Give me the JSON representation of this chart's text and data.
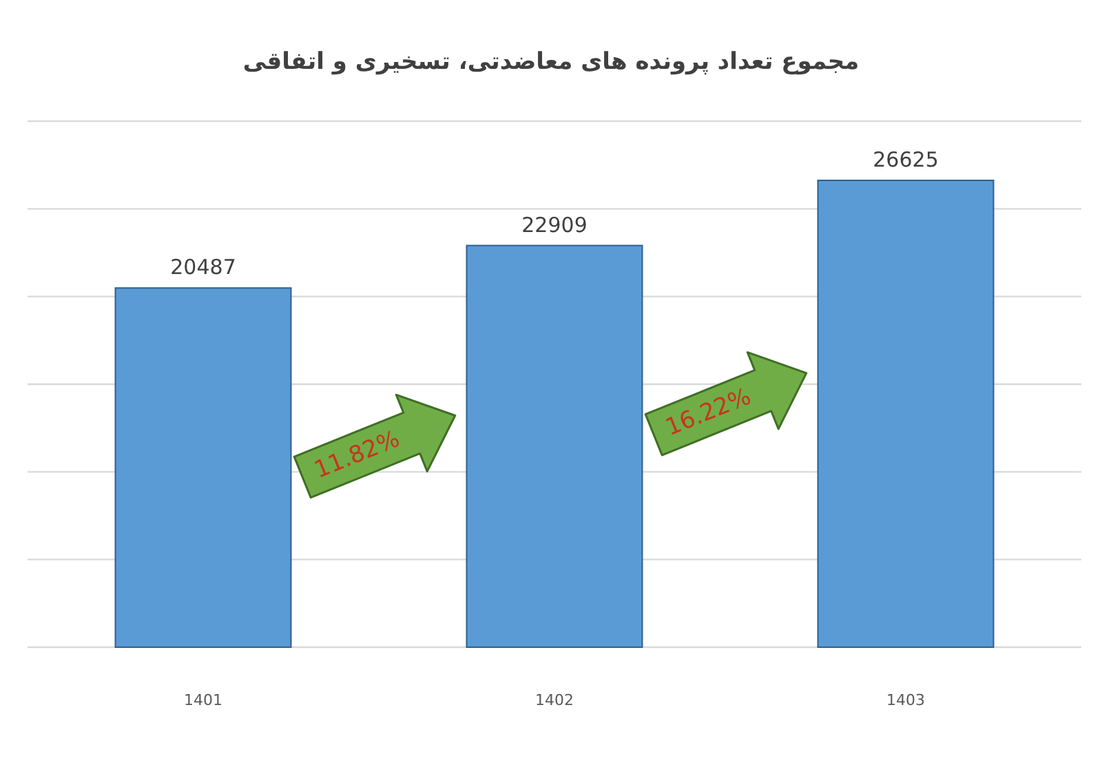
{
  "chart_data": {
    "type": "bar",
    "title": "مجموع تعداد پرونده های معاضدتی، تسخیری و اتفاقی",
    "categories": [
      "1401",
      "1402",
      "1403"
    ],
    "values": [
      20487,
      22909,
      26625
    ],
    "color": "#5b9bd5",
    "data_labels": true,
    "ylim": [
      0,
      30000
    ],
    "yticks": [
      {
        "value": 0,
        "label": null
      },
      {
        "value": 5000,
        "label": null
      },
      {
        "value": 10000,
        "label": null
      },
      {
        "value": 15000,
        "label": null
      },
      {
        "value": 20000,
        "label": null
      },
      {
        "value": 25000,
        "label": null
      },
      {
        "value": 30000,
        "label": null
      }
    ],
    "grid": "y",
    "tick_labels": "x",
    "annotations": [
      "11.82%",
      "16.22%"
    ]
  }
}
